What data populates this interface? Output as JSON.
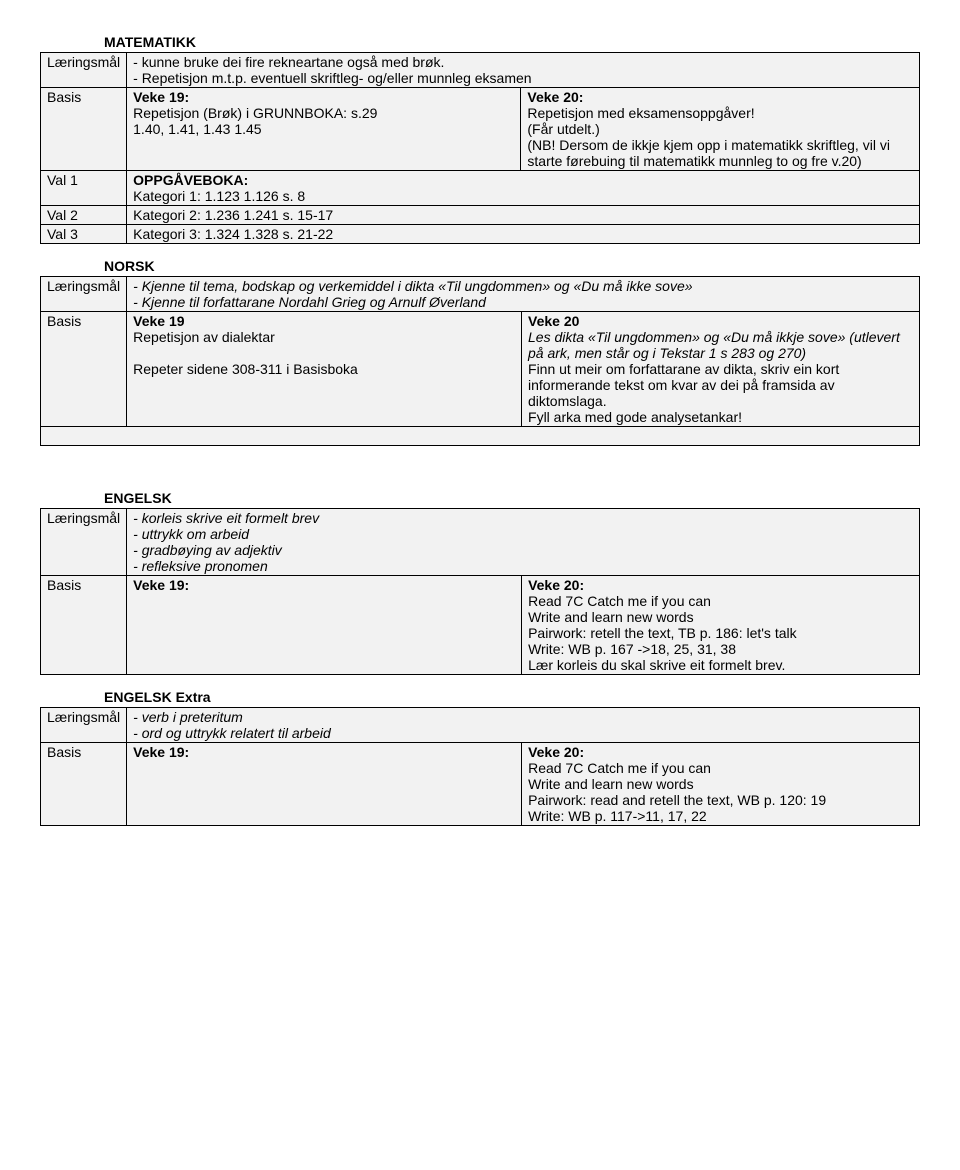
{
  "matematikk": {
    "title": "MATEMATIKK",
    "labels": {
      "goal": "Læringsmål",
      "basis": "Basis",
      "val1": "Val 1",
      "val2": "Val 2",
      "val3": "Val 3"
    },
    "goals": [
      "- kunne bruke dei fire rekneartane også med brøk.",
      "- Repetisjon m.t.p. eventuell skriftleg- og/eller munnleg eksamen"
    ],
    "leftHead": "Veke 19:",
    "leftLines": [
      "Repetisjon (Brøk) i GRUNNBOKA: s.29",
      "1.40, 1.41, 1.43 1.45"
    ],
    "rightHead": "Veke 20:",
    "rightLines": [
      "Repetisjon med eksamensoppgåver!",
      "(Får utdelt.)",
      "(NB! Dersom de ikkje kjem opp i matematikk skriftleg, vil vi starte førebuing til matematikk munnleg to og fre v.20)"
    ],
    "val1a": "OPPGÅVEBOKA:",
    "val1b": "Kategori 1: 1.123 1.126   s.  8",
    "val2": "Kategori 2: 1.236 1.241   s. 15-17",
    "val3": "Kategori 3: 1.324 1.328   s. 21-22"
  },
  "norsk": {
    "title": "NORSK",
    "labels": {
      "goal": "Læringsmål",
      "basis": "Basis"
    },
    "goals": [
      "- Kjenne til tema, bodskap og verkemiddel i dikta «Til ungdommen» og «Du må ikke sove»",
      "- Kjenne til forfattarane Nordahl Grieg og Arnulf Øverland"
    ],
    "leftHead": "Veke 19",
    "leftLines": [
      "Repetisjon av dialektar",
      "",
      "Repeter sidene 308-311 i Basisboka"
    ],
    "rightHead": "Veke 20",
    "rightLines": [
      "Les dikta «Til ungdommen» og «Du må ikkje sove» (utlevert på ark, men står og i Tekstar 1 s 283 og 270)",
      "Finn ut meir om forfattarane av dikta, skriv ein kort informerande tekst om kvar av dei på framsida av diktomslaga.",
      "Fyll arka med gode analysetankar!"
    ]
  },
  "engelsk": {
    "title": "ENGELSK",
    "labels": {
      "goal": "Læringsmål",
      "basis": "Basis"
    },
    "goals": [
      "- korleis skrive eit formelt brev",
      "- uttrykk om arbeid",
      "- gradbøying av adjektiv",
      "- refleksive pronomen"
    ],
    "leftHead": "Veke 19:",
    "rightHead": "Veke 20:",
    "rightLines": [
      "Read 7C Catch me if you can",
      "Write and learn new words",
      "Pairwork: retell the text, TB p. 186: let's talk",
      "Write: WB p. 167 ->18, 25, 31, 38",
      "Lær korleis du skal skrive eit formelt brev."
    ]
  },
  "engelskExtra": {
    "title": "ENGELSK Extra",
    "labels": {
      "goal": "Læringsmål",
      "basis": "Basis"
    },
    "goals": [
      "- verb i preteritum",
      "- ord og uttrykk relatert til arbeid"
    ],
    "leftHead": "Veke 19:",
    "rightHead": "Veke 20:",
    "rightLines": [
      "Read 7C Catch me if you can",
      "Write and learn new words",
      "Pairwork: read and retell the text, WB p. 120: 19",
      "Write: WB p. 117->11, 17, 22"
    ]
  }
}
